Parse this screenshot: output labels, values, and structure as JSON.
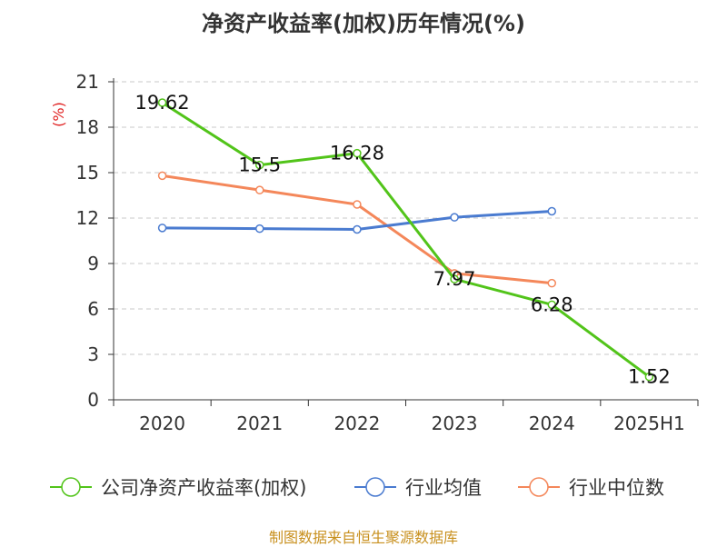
{
  "page": {
    "title": "净资产收益率(加权)历年情况(%)",
    "source": "制图数据来自恒生聚源数据库"
  },
  "chart_data": {
    "type": "line",
    "title": "净资产收益率(加权)历年情况(%)",
    "ylabel": "(%)",
    "xlabel": "",
    "categories": [
      "2020",
      "2021",
      "2022",
      "2023",
      "2024",
      "2025H1"
    ],
    "ylim": [
      0,
      21
    ],
    "yticks": [
      0,
      3,
      6,
      9,
      12,
      15,
      18,
      21
    ],
    "grid": "horizontal-dashed",
    "legend_position": "bottom",
    "series": [
      {
        "name": "公司净资产收益率(加权)",
        "color": "#52c41a",
        "values": [
          19.62,
          15.5,
          16.28,
          7.97,
          6.28,
          1.52
        ],
        "labels": [
          "19.62",
          "15.5",
          "16.28",
          "7.97",
          "6.28",
          "1.52"
        ]
      },
      {
        "name": "行业均值",
        "color": "#4a7bd0",
        "values": [
          11.35,
          11.3,
          11.25,
          12.05,
          12.45,
          null
        ]
      },
      {
        "name": "行业中位数",
        "color": "#f4875a",
        "values": [
          14.8,
          13.85,
          12.9,
          8.35,
          7.7,
          null
        ]
      }
    ]
  }
}
